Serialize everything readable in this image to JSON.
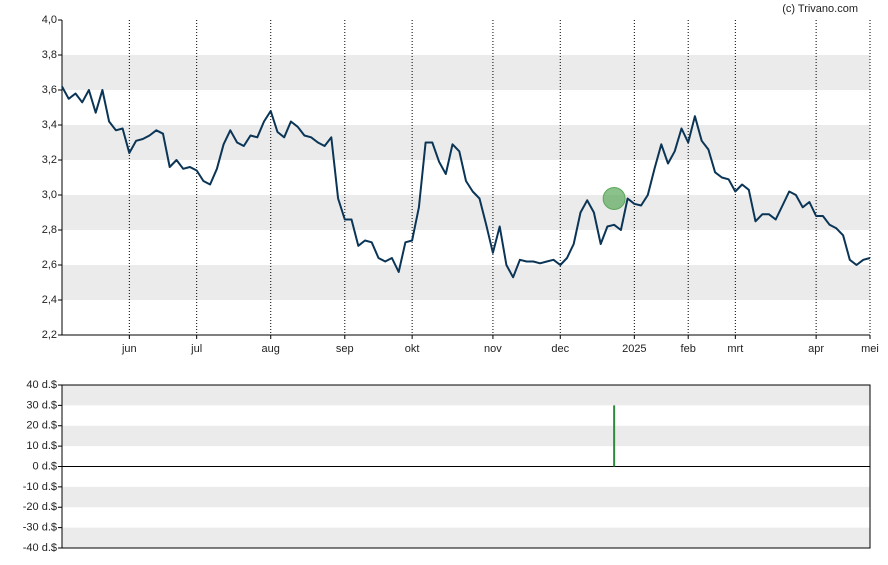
{
  "source": "(c) Trivano.com",
  "chart_data": [
    {
      "type": "line",
      "color": "#0b3556",
      "xlim": [
        0,
        120
      ],
      "xticks": [
        {
          "value": 10,
          "label": "jun"
        },
        {
          "value": 20,
          "label": "jul"
        },
        {
          "value": 31,
          "label": "aug"
        },
        {
          "value": 42,
          "label": "sep"
        },
        {
          "value": 52,
          "label": "okt"
        },
        {
          "value": 64,
          "label": "nov"
        },
        {
          "value": 74,
          "label": "dec"
        },
        {
          "value": 85,
          "label": "2025"
        },
        {
          "value": 93,
          "label": "feb"
        },
        {
          "value": 100,
          "label": "mrt"
        },
        {
          "value": 112,
          "label": "apr"
        },
        {
          "value": 120,
          "label": "mei"
        }
      ],
      "ylim": [
        2.2,
        4.0
      ],
      "yticks": [
        {
          "value": 4.0,
          "label": "4,0"
        },
        {
          "value": 3.8,
          "label": "3,8"
        },
        {
          "value": 3.6,
          "label": "3,6"
        },
        {
          "value": 3.4,
          "label": "3,4"
        },
        {
          "value": 3.2,
          "label": "3,2"
        },
        {
          "value": 3.0,
          "label": "3,0"
        },
        {
          "value": 2.8,
          "label": "2,8"
        },
        {
          "value": 2.6,
          "label": "2,6"
        },
        {
          "value": 2.4,
          "label": "2,4"
        },
        {
          "value": 2.2,
          "label": "2,2"
        }
      ],
      "bands": [
        [
          3.6,
          3.8
        ],
        [
          3.2,
          3.4
        ],
        [
          2.8,
          3.0
        ],
        [
          2.4,
          2.6
        ]
      ],
      "values": [
        3.62,
        3.55,
        3.58,
        3.53,
        3.6,
        3.47,
        3.6,
        3.42,
        3.37,
        3.38,
        3.24,
        3.31,
        3.32,
        3.34,
        3.37,
        3.35,
        3.16,
        3.2,
        3.15,
        3.16,
        3.14,
        3.08,
        3.06,
        3.15,
        3.29,
        3.37,
        3.3,
        3.28,
        3.34,
        3.33,
        3.42,
        3.48,
        3.36,
        3.33,
        3.42,
        3.39,
        3.34,
        3.33,
        3.3,
        3.28,
        3.33,
        2.98,
        2.86,
        2.86,
        2.71,
        2.74,
        2.73,
        2.64,
        2.62,
        2.64,
        2.56,
        2.73,
        2.74,
        2.93,
        3.3,
        3.3,
        3.19,
        3.12,
        3.29,
        3.25,
        3.08,
        3.02,
        2.98,
        2.83,
        2.67,
        2.82,
        2.6,
        2.53,
        2.63,
        2.62,
        2.62,
        2.61,
        2.62,
        2.63,
        2.6,
        2.64,
        2.72,
        2.9,
        2.97,
        2.9,
        2.72,
        2.82,
        2.83,
        2.8,
        2.98,
        2.95,
        2.94,
        3.0,
        3.15,
        3.29,
        3.18,
        3.25,
        3.38,
        3.3,
        3.45,
        3.31,
        3.26,
        3.13,
        3.1,
        3.09,
        3.02,
        3.06,
        3.03,
        2.85,
        2.89,
        2.89,
        2.86,
        2.94,
        3.02,
        3.0,
        2.93,
        2.96,
        2.88,
        2.88,
        2.83,
        2.81,
        2.77,
        2.63,
        2.6,
        2.63,
        2.64
      ],
      "events": [
        {
          "x": 82,
          "value": 2.98,
          "color": "#5aa85a"
        }
      ]
    },
    {
      "type": "bar",
      "color": "#2e8b3a",
      "xlim": [
        0,
        120
      ],
      "ylim": [
        -40,
        40
      ],
      "yticks": [
        {
          "value": 40,
          "label": "40 d.$"
        },
        {
          "value": 30,
          "label": "30 d.$"
        },
        {
          "value": 20,
          "label": "20 d.$"
        },
        {
          "value": 10,
          "label": "10 d.$"
        },
        {
          "value": 0,
          "label": "0 d.$"
        },
        {
          "value": -10,
          "label": "-10 d.$"
        },
        {
          "value": -20,
          "label": "-20 d.$"
        },
        {
          "value": -30,
          "label": "-30 d.$"
        },
        {
          "value": -40,
          "label": "-40 d.$"
        }
      ],
      "bands": [
        [
          30,
          40
        ],
        [
          10,
          20
        ],
        [
          -20,
          -10
        ],
        [
          -40,
          -30
        ]
      ],
      "x": [
        82
      ],
      "values": [
        30
      ]
    }
  ]
}
